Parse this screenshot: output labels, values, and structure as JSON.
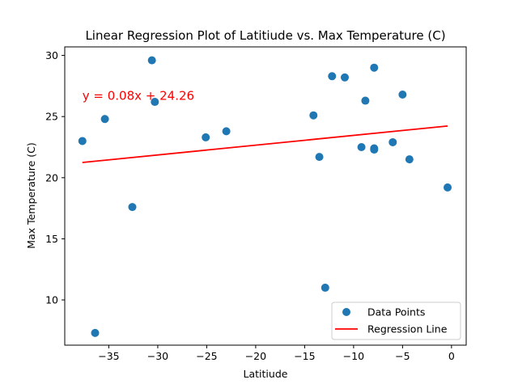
{
  "chart_data": {
    "type": "scatter",
    "title": "Linear Regression Plot of Latitiude vs. Max Temperature (C)",
    "xlabel": "Latitiude",
    "ylabel": "Max Temperature (C)",
    "xlim": [
      -39.5,
      1.5
    ],
    "ylim": [
      6.3,
      30.7
    ],
    "xticks": [
      -35,
      -30,
      -25,
      -20,
      -15,
      -10,
      -5,
      0
    ],
    "xtick_labels": [
      "−35",
      "−30",
      "−25",
      "−20",
      "−15",
      "−10",
      "−5",
      "0"
    ],
    "yticks": [
      10,
      15,
      20,
      25,
      30
    ],
    "ytick_labels": [
      "10",
      "15",
      "20",
      "25",
      "30"
    ],
    "grid": false,
    "legend_position": "lower-right",
    "series": [
      {
        "name": "Data Points",
        "kind": "scatter",
        "color": "#1f77b4",
        "points": [
          {
            "x": -37.7,
            "y": 23.0
          },
          {
            "x": -36.4,
            "y": 7.3
          },
          {
            "x": -35.4,
            "y": 24.8
          },
          {
            "x": -32.6,
            "y": 17.6
          },
          {
            "x": -30.6,
            "y": 29.6
          },
          {
            "x": -30.3,
            "y": 26.2
          },
          {
            "x": -25.1,
            "y": 23.3
          },
          {
            "x": -23.0,
            "y": 23.8
          },
          {
            "x": -14.1,
            "y": 25.1
          },
          {
            "x": -13.5,
            "y": 21.7
          },
          {
            "x": -12.9,
            "y": 11.0
          },
          {
            "x": -12.2,
            "y": 28.3
          },
          {
            "x": -10.9,
            "y": 28.2
          },
          {
            "x": -9.2,
            "y": 22.5
          },
          {
            "x": -8.8,
            "y": 26.3
          },
          {
            "x": -7.9,
            "y": 29.0
          },
          {
            "x": -7.9,
            "y": 22.4
          },
          {
            "x": -7.9,
            "y": 22.3
          },
          {
            "x": -6.0,
            "y": 22.9
          },
          {
            "x": -5.0,
            "y": 26.8
          },
          {
            "x": -4.3,
            "y": 21.5
          },
          {
            "x": -0.4,
            "y": 19.2
          }
        ]
      },
      {
        "name": "Regression Line",
        "kind": "line",
        "color": "#ff0000",
        "slope": 0.08,
        "intercept": 24.26,
        "x_range": [
          -37.7,
          -0.4
        ]
      }
    ],
    "annotations": [
      {
        "text": "y = 0.08x + 24.26",
        "x": -37.7,
        "y": 26.7,
        "color": "#ff0000"
      }
    ]
  }
}
